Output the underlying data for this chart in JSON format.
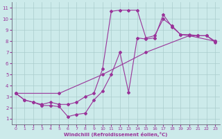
{
  "title": "",
  "xlabel": "Windchill (Refroidissement éolien,°C)",
  "bg_color": "#cceaea",
  "grid_color": "#aacccc",
  "line_color": "#993399",
  "xlim": [
    -0.5,
    23.5
  ],
  "ylim": [
    0.5,
    11.5
  ],
  "xticks": [
    0,
    1,
    2,
    3,
    4,
    5,
    6,
    7,
    8,
    9,
    10,
    11,
    12,
    13,
    14,
    15,
    16,
    17,
    18,
    19,
    20,
    21,
    22,
    23
  ],
  "yticks": [
    1,
    2,
    3,
    4,
    5,
    6,
    7,
    8,
    9,
    10,
    11
  ],
  "series1_x": [
    0,
    1,
    2,
    3,
    4,
    5,
    6,
    7,
    8,
    9,
    10,
    11,
    12,
    13,
    14,
    15,
    16,
    17,
    18,
    19,
    20,
    21,
    22,
    23
  ],
  "series1_y": [
    3.3,
    2.7,
    2.5,
    2.2,
    2.2,
    2.1,
    1.2,
    1.4,
    1.5,
    2.7,
    3.5,
    5.0,
    7.0,
    3.4,
    8.3,
    8.2,
    8.3,
    10.4,
    9.3,
    8.6,
    8.5,
    8.5,
    8.5,
    8.0
  ],
  "series2_x": [
    0,
    1,
    2,
    3,
    4,
    5,
    6,
    7,
    8,
    9,
    10,
    11,
    12,
    13,
    14,
    15,
    16,
    17,
    18,
    19,
    20,
    21,
    22,
    23
  ],
  "series2_y": [
    3.3,
    2.7,
    2.5,
    2.3,
    2.5,
    2.3,
    2.3,
    2.5,
    3.0,
    3.3,
    5.5,
    10.7,
    10.8,
    10.8,
    10.8,
    8.3,
    8.5,
    10.0,
    9.4,
    8.6,
    8.6,
    8.5,
    8.5,
    7.9
  ],
  "series3_x": [
    0,
    5,
    10,
    15,
    20,
    23
  ],
  "series3_y": [
    3.3,
    3.3,
    5.0,
    7.0,
    8.5,
    8.0
  ]
}
